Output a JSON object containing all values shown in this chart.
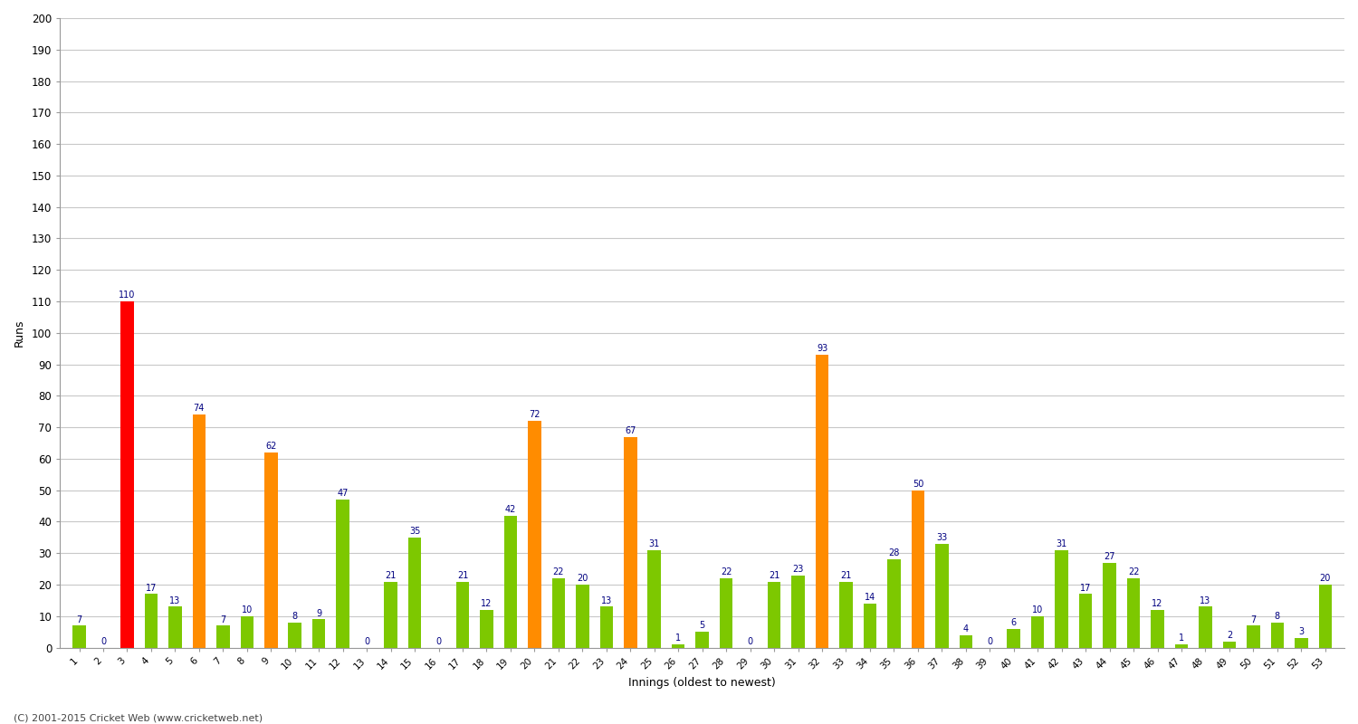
{
  "innings": [
    1,
    2,
    3,
    4,
    5,
    6,
    7,
    8,
    9,
    10,
    11,
    12,
    13,
    14,
    15,
    16,
    17,
    18,
    19,
    20,
    21,
    22,
    23,
    24,
    25,
    26,
    27,
    28,
    29,
    30,
    31,
    32,
    33,
    34,
    35,
    36,
    37,
    38,
    39,
    40,
    41,
    42,
    43,
    44,
    45,
    46,
    47,
    48,
    49,
    50,
    51,
    52,
    53
  ],
  "scores": [
    7,
    0,
    110,
    17,
    13,
    74,
    7,
    10,
    62,
    8,
    9,
    47,
    0,
    21,
    35,
    0,
    21,
    12,
    42,
    72,
    22,
    20,
    13,
    67,
    31,
    1,
    5,
    22,
    0,
    21,
    23,
    93,
    21,
    14,
    28,
    50,
    33,
    4,
    0,
    6,
    10,
    31,
    17,
    27,
    22,
    12,
    1,
    13,
    2,
    7,
    8,
    3,
    20
  ],
  "xlabel": "Innings (oldest to newest)",
  "ylabel": "Runs",
  "ylim": [
    0,
    200
  ],
  "yticks": [
    0,
    10,
    20,
    30,
    40,
    50,
    60,
    70,
    80,
    90,
    100,
    110,
    120,
    130,
    140,
    150,
    160,
    170,
    180,
    190,
    200
  ],
  "color_century": "#ff0000",
  "color_fifty": "#ff8c00",
  "color_normal": "#7dc800",
  "label_color": "#000080",
  "label_fontsize": 7,
  "background_color": "#ffffff",
  "grid_color": "#c8c8c8",
  "footer": "(C) 2001-2015 Cricket Web (www.cricketweb.net)"
}
